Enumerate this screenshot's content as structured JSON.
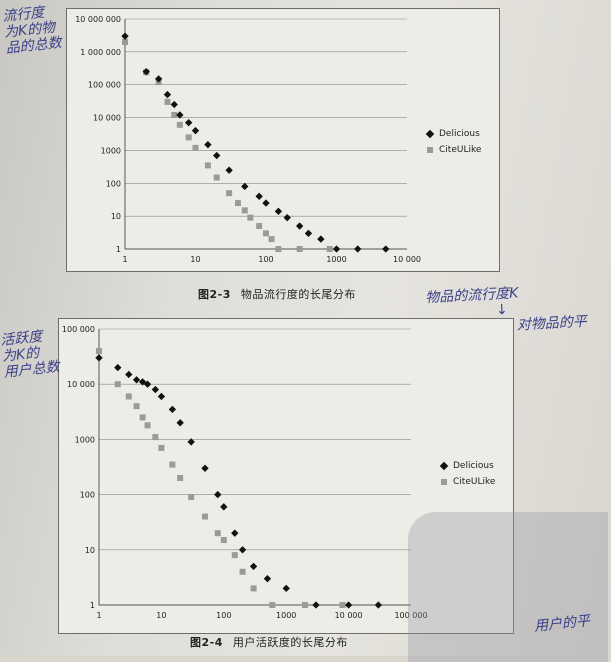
{
  "handwritten_notes": {
    "chart1_ylabel": [
      "流行度",
      "为K的物",
      "品的总数"
    ],
    "chart2_ylabel": [
      "活跃度",
      "为K的",
      "用户总数"
    ],
    "right_note": [
      "物品的流行度K",
      "↓",
      "对物品的平"
    ],
    "bottom_right_note": "用户的平"
  },
  "captions": [
    {
      "number": "图2-3",
      "text": "物品流行度的长尾分布"
    },
    {
      "number": "图2-4",
      "text": "用户活跃度的长尾分布"
    }
  ],
  "colors": {
    "delicious": "#111111",
    "citeulike": "#9a9a9a"
  },
  "chart_data": [
    {
      "type": "scatter",
      "log_x": true,
      "log_y": true,
      "xlim": [
        1,
        10000
      ],
      "ylim": [
        1,
        10000000
      ],
      "x_ticks": [
        "1",
        "10",
        "100",
        "1000",
        "10 000"
      ],
      "y_ticks": [
        "1",
        "10",
        "100",
        "1000",
        "10 000",
        "100 000",
        "1 000 000",
        "10 000 000"
      ],
      "grid": "horizontal",
      "legend_position": "right",
      "series": [
        {
          "name": "Delicious",
          "points": [
            [
              1,
              3000000
            ],
            [
              2,
              250000
            ],
            [
              3,
              150000
            ],
            [
              4,
              50000
            ],
            [
              5,
              25000
            ],
            [
              6,
              12000
            ],
            [
              8,
              7000
            ],
            [
              10,
              4000
            ],
            [
              15,
              1500
            ],
            [
              20,
              700
            ],
            [
              30,
              250
            ],
            [
              50,
              80
            ],
            [
              80,
              40
            ],
            [
              100,
              25
            ],
            [
              150,
              14
            ],
            [
              200,
              9
            ],
            [
              300,
              5
            ],
            [
              400,
              3
            ],
            [
              600,
              2
            ],
            [
              1000,
              1
            ],
            [
              2000,
              1
            ],
            [
              5000,
              1
            ]
          ]
        },
        {
          "name": "CiteULike",
          "points": [
            [
              1,
              2000000
            ],
            [
              2,
              240000
            ],
            [
              3,
              120000
            ],
            [
              4,
              30000
            ],
            [
              5,
              12000
            ],
            [
              6,
              6000
            ],
            [
              8,
              2500
            ],
            [
              10,
              1200
            ],
            [
              15,
              350
            ],
            [
              20,
              150
            ],
            [
              30,
              50
            ],
            [
              40,
              25
            ],
            [
              50,
              15
            ],
            [
              60,
              9
            ],
            [
              80,
              5
            ],
            [
              100,
              3
            ],
            [
              120,
              2
            ],
            [
              150,
              1
            ],
            [
              300,
              1
            ],
            [
              800,
              1
            ]
          ]
        }
      ]
    },
    {
      "type": "scatter",
      "log_x": true,
      "log_y": true,
      "xlim": [
        1,
        100000
      ],
      "ylim": [
        1,
        100000
      ],
      "x_ticks": [
        "1",
        "10",
        "100",
        "1000",
        "10 000",
        "100 000"
      ],
      "y_ticks": [
        "1",
        "10",
        "100",
        "1000",
        "10 000",
        "100 000"
      ],
      "grid": "horizontal",
      "legend_position": "right",
      "series": [
        {
          "name": "Delicious",
          "points": [
            [
              1,
              30000
            ],
            [
              2,
              20000
            ],
            [
              3,
              15000
            ],
            [
              4,
              12000
            ],
            [
              5,
              11000
            ],
            [
              6,
              10000
            ],
            [
              8,
              8000
            ],
            [
              10,
              6000
            ],
            [
              15,
              3500
            ],
            [
              20,
              2000
            ],
            [
              30,
              900
            ],
            [
              50,
              300
            ],
            [
              80,
              100
            ],
            [
              100,
              60
            ],
            [
              150,
              20
            ],
            [
              200,
              10
            ],
            [
              300,
              5
            ],
            [
              500,
              3
            ],
            [
              1000,
              2
            ],
            [
              3000,
              1
            ],
            [
              10000,
              1
            ],
            [
              30000,
              1
            ]
          ]
        },
        {
          "name": "CiteULike",
          "points": [
            [
              1,
              40000
            ],
            [
              2,
              10000
            ],
            [
              3,
              6000
            ],
            [
              4,
              4000
            ],
            [
              5,
              2500
            ],
            [
              6,
              1800
            ],
            [
              8,
              1100
            ],
            [
              10,
              700
            ],
            [
              15,
              350
            ],
            [
              20,
              200
            ],
            [
              30,
              90
            ],
            [
              50,
              40
            ],
            [
              80,
              20
            ],
            [
              100,
              15
            ],
            [
              150,
              8
            ],
            [
              200,
              4
            ],
            [
              300,
              2
            ],
            [
              600,
              1
            ],
            [
              2000,
              1
            ],
            [
              8000,
              1
            ]
          ]
        }
      ]
    }
  ]
}
